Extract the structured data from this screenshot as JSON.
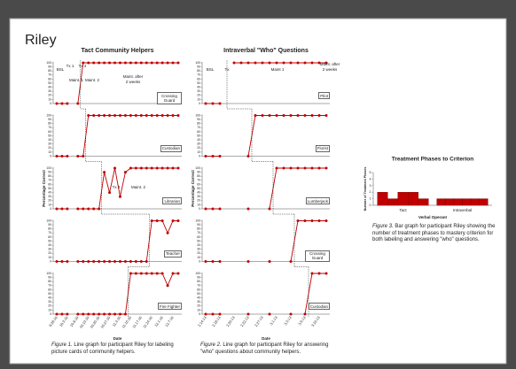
{
  "title": "Riley",
  "chart_data": [
    {
      "type": "line",
      "title": "Tact Community Helpers",
      "ylabel": "Percentage Correct",
      "xlabel": "Date",
      "x": [
        "9.26.10",
        null,
        "10.3.10",
        null,
        "10.6.10",
        null,
        "10.13.10",
        null,
        "10.20.10",
        null,
        "10.27.10",
        null,
        "11.3.10",
        null,
        "11.10.10",
        null,
        "11.17.10",
        null,
        "11.24.10",
        null,
        "12.1.10",
        null,
        "12.7.10",
        null
      ],
      "color": "#c00000",
      "ylim": [
        0,
        100
      ],
      "yticks": [
        0,
        10,
        20,
        30,
        40,
        50,
        60,
        70,
        80,
        90,
        100
      ],
      "panels": [
        {
          "name": "Crossing Guard",
          "phases": [
            "BSL",
            "Tx 1",
            "Maint. 1",
            "Tx 2",
            "Maint. 2",
            "Maint. after 2 weeks"
          ],
          "values": [
            0,
            0,
            0,
            null,
            0,
            100,
            100,
            100,
            100,
            100,
            100,
            100,
            100,
            100,
            100,
            100,
            100,
            100,
            100,
            100,
            100,
            100,
            100,
            100
          ]
        },
        {
          "name": "Custodian",
          "phases": [],
          "values": [
            0,
            0,
            0,
            null,
            0,
            0,
            100,
            100,
            100,
            100,
            100,
            100,
            100,
            100,
            100,
            100,
            100,
            100,
            100,
            100,
            100,
            100,
            100,
            100
          ]
        },
        {
          "name": "Librarian",
          "phases": [
            "Tx 2",
            "Maint. 2"
          ],
          "values": [
            0,
            0,
            0,
            null,
            0,
            0,
            0,
            0,
            0,
            90,
            40,
            100,
            30,
            90,
            100,
            100,
            100,
            100,
            100,
            100,
            100,
            100,
            100,
            100
          ]
        },
        {
          "name": "Teacher",
          "phases": [],
          "values": [
            0,
            0,
            0,
            null,
            0,
            0,
            0,
            0,
            0,
            0,
            0,
            0,
            0,
            0,
            0,
            0,
            0,
            0,
            100,
            100,
            100,
            70,
            100,
            100
          ]
        },
        {
          "name": "Fire Fighter",
          "phases": [],
          "values": [
            0,
            0,
            0,
            null,
            0,
            0,
            0,
            0,
            0,
            0,
            0,
            0,
            0,
            0,
            100,
            100,
            100,
            100,
            100,
            100,
            100,
            70,
            100,
            100
          ]
        }
      ],
      "caption": {
        "label": "Figure 1.",
        "text": " Line graph for participant Riley for labeling picture cards of community helpers."
      }
    },
    {
      "type": "line",
      "title": "Intraverbal \"Who\" Questions",
      "ylabel": "Percentage Correct",
      "xlabel": "Date",
      "x": [
        "2.14.13",
        null,
        "2.16.13",
        null,
        "2.20.13",
        null,
        "2.22.13",
        null,
        "2.27.13",
        null,
        "3.1.13",
        null,
        "3.3.13",
        null,
        "3.5.13",
        null,
        "3.10.13",
        null
      ],
      "color": "#c00000",
      "ylim": [
        0,
        100
      ],
      "yticks": [
        0,
        10,
        20,
        30,
        40,
        50,
        60,
        70,
        80,
        90,
        100
      ],
      "panels": [
        {
          "name": "Pilot",
          "phases": [
            "BSL",
            "Tx",
            "Maint 1",
            "Maint. after 2 weeks"
          ],
          "values": [
            0,
            0,
            0,
            null,
            100,
            100,
            100,
            100,
            100,
            100,
            100,
            100,
            100,
            100,
            100,
            100,
            100,
            100
          ]
        },
        {
          "name": "Florist",
          "phases": [],
          "values": [
            0,
            0,
            0,
            null,
            null,
            null,
            0,
            100,
            100,
            100,
            100,
            100,
            100,
            100,
            100,
            100,
            100,
            100
          ]
        },
        {
          "name": "Lumberjack",
          "phases": [],
          "values": [
            0,
            0,
            0,
            null,
            null,
            null,
            0,
            null,
            null,
            0,
            100,
            100,
            100,
            100,
            100,
            100,
            100,
            100
          ]
        },
        {
          "name": "Crossing Guard",
          "phases": [],
          "values": [
            0,
            0,
            0,
            null,
            null,
            null,
            0,
            null,
            null,
            0,
            null,
            null,
            0,
            100,
            100,
            100,
            100,
            100
          ]
        },
        {
          "name": "Custodian",
          "phases": [],
          "values": [
            0,
            0,
            0,
            null,
            null,
            null,
            0,
            null,
            null,
            0,
            null,
            null,
            0,
            null,
            0,
            100,
            100,
            100
          ]
        }
      ],
      "caption": {
        "label": "Figure 2.",
        "text": " Line graph for participant Riley for answering \"who\" questions about community helpers."
      }
    },
    {
      "type": "bar",
      "title": "Treatment Phases to Criterion",
      "ylabel": "Number of Treatment Phases",
      "xlabel": "Verbal Operant",
      "color": "#c00000",
      "ylim": [
        0,
        5
      ],
      "yticks": [
        0,
        1,
        2,
        3,
        4,
        5
      ],
      "groups": [
        {
          "name": "Tact",
          "values": [
            2,
            1,
            2,
            2,
            1
          ]
        },
        {
          "name": "Intraverbal",
          "values": [
            1,
            1,
            1,
            1,
            1,
            1
          ]
        }
      ],
      "caption": {
        "label": "Figure 3.",
        "text": " Bar graph for participant Riley showing the number of treatment phases to mastery criterion for both labeling and answering \"who\" questions."
      }
    }
  ]
}
